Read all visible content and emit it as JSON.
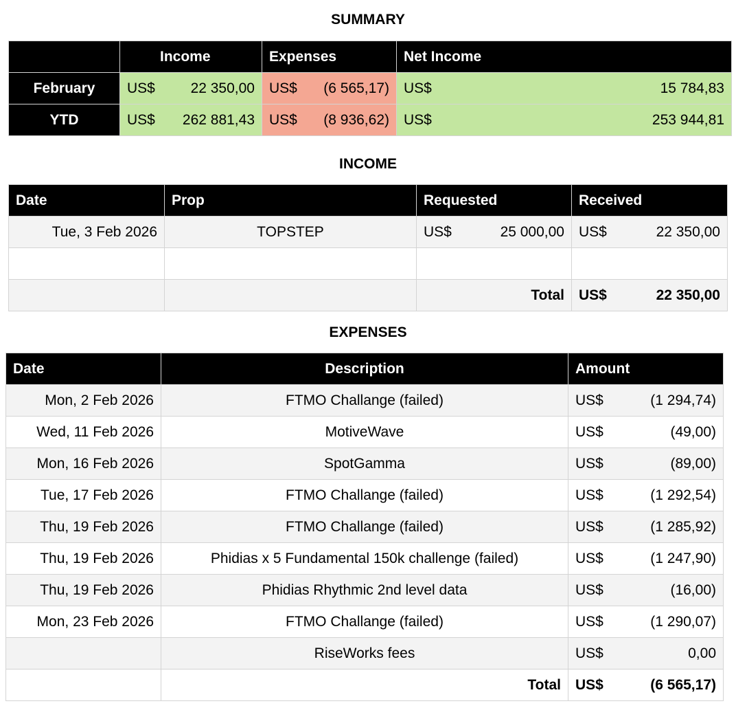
{
  "summary": {
    "title": "SUMMARY",
    "headers": {
      "income": "Income",
      "expenses": "Expenses",
      "net": "Net Income"
    },
    "rows": [
      {
        "label": "February",
        "income_cur": "US$",
        "income": "22 350,00",
        "expenses_cur": "US$",
        "expenses": "(6 565,17)",
        "net_cur": "US$",
        "net": "15 784,83"
      },
      {
        "label": "YTD",
        "income_cur": "US$",
        "income": "262 881,43",
        "expenses_cur": "US$",
        "expenses": "(8 936,62)",
        "net_cur": "US$",
        "net": "253 944,81"
      }
    ]
  },
  "income": {
    "title": "INCOME",
    "headers": {
      "date": "Date",
      "prop": "Prop",
      "requested": "Requested",
      "received": "Received"
    },
    "rows": [
      {
        "date": "Tue, 3 Feb 2026",
        "prop": "TOPSTEP",
        "requested_cur": "US$",
        "requested": "25 000,00",
        "received_cur": "US$",
        "received": "22 350,00"
      },
      {
        "date": "",
        "prop": "",
        "requested_cur": "",
        "requested": "",
        "received_cur": "",
        "received": ""
      }
    ],
    "total_label": "Total",
    "total_cur": "US$",
    "total": "22 350,00"
  },
  "expenses": {
    "title": "EXPENSES",
    "headers": {
      "date": "Date",
      "description": "Description",
      "amount": "Amount"
    },
    "rows": [
      {
        "date": "Mon, 2 Feb 2026",
        "description": "FTMO Challange (failed)",
        "cur": "US$",
        "amount": "(1 294,74)"
      },
      {
        "date": "Wed, 11 Feb 2026",
        "description": "MotiveWave",
        "cur": "US$",
        "amount": "(49,00)"
      },
      {
        "date": "Mon, 16 Feb 2026",
        "description": "SpotGamma",
        "cur": "US$",
        "amount": "(89,00)"
      },
      {
        "date": "Tue, 17 Feb 2026",
        "description": "FTMO Challange (failed)",
        "cur": "US$",
        "amount": "(1 292,54)"
      },
      {
        "date": "Thu, 19 Feb 2026",
        "description": "FTMO Challange (failed)",
        "cur": "US$",
        "amount": "(1 285,92)"
      },
      {
        "date": "Thu, 19 Feb 2026",
        "description": "Phidias x 5 Fundamental 150k challenge (failed)",
        "cur": "US$",
        "amount": "(1 247,90)"
      },
      {
        "date": "Thu, 19 Feb 2026",
        "description": "Phidias Rhythmic 2nd level data",
        "cur": "US$",
        "amount": "(16,00)"
      },
      {
        "date": "Mon, 23 Feb 2026",
        "description": "FTMO Challange (failed)",
        "cur": "US$",
        "amount": "(1 290,07)"
      },
      {
        "date": "",
        "description": "RiseWorks fees",
        "cur": "US$",
        "amount": "0,00"
      }
    ],
    "total_label": "Total",
    "total_cur": "US$",
    "total": "(6 565,17)"
  },
  "colors": {
    "positive": "#c3e6a0",
    "negative": "#f4a793",
    "header": "#000000",
    "zebra": "#f3f3f3"
  }
}
